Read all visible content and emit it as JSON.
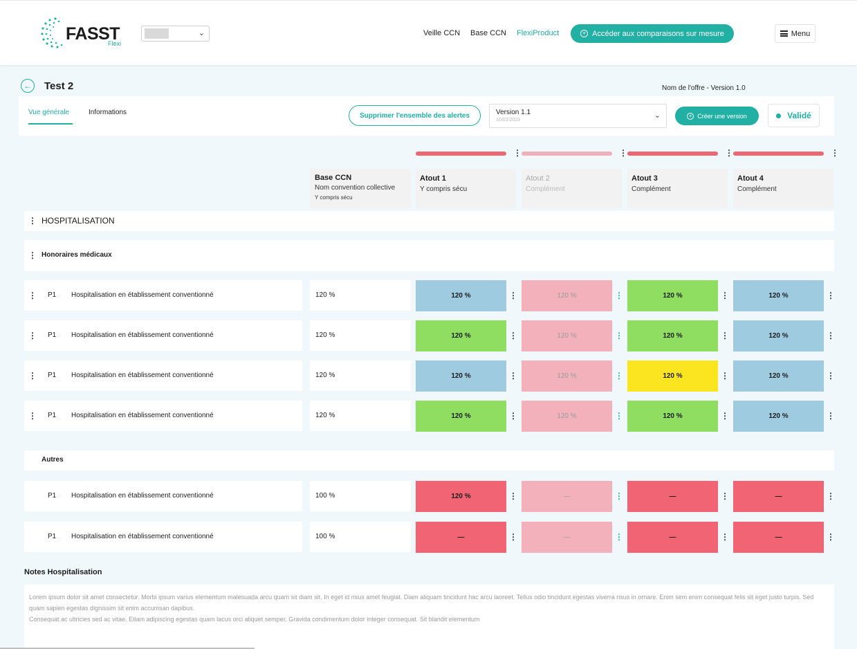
{
  "header": {
    "logo_text": "FASST",
    "logo_sub": "Flexi",
    "nav": [
      "Veille CCN",
      "Base CCN",
      "FlexiProduct"
    ],
    "cta_label": "Accéder aux comparaisons sur mesure",
    "menu_label": "Menu"
  },
  "page": {
    "title": "Test 2",
    "offer_name": "Nom de l'offre - Version 1.0",
    "tabs": [
      "Vue générale",
      "Informations"
    ],
    "delete_alerts_label": "Supprimer l'ensemble des alertes",
    "version_label": "Version 1.1",
    "version_date": "10/02/2023",
    "create_version_label": "Créer une version",
    "status_label": "Validé"
  },
  "columns": {
    "base": {
      "title": "Base CCN",
      "subtitle": "Nom convention collective",
      "note": "Y compris sécu"
    },
    "atouts": [
      {
        "title": "Atout 1",
        "subtitle": "Y compris sécu",
        "bar_color": "#e96873"
      },
      {
        "title": "Atout 2",
        "subtitle": "Complément",
        "bar_color": "#f0b0bb"
      },
      {
        "title": "Atout 3",
        "subtitle": "Complément",
        "bar_color": "#e96873"
      },
      {
        "title": "Atout 4",
        "subtitle": "Complément",
        "bar_color": "#e96873"
      }
    ]
  },
  "sections": {
    "main": "HOSPITALISATION",
    "group1": "Honoraires médicaux",
    "group2": "Autres"
  },
  "rows_group1": [
    {
      "code": "P1",
      "label": "Hospitalisation en établissement conventionné",
      "base": "120 %",
      "cells": [
        "120 %",
        "120 %",
        "120 %",
        "120 %"
      ],
      "colors": [
        "#9fcbe1",
        "#f2b1bb",
        "#8fde62",
        "#9fcbe1"
      ]
    },
    {
      "code": "P1",
      "label": "Hospitalisation en établissement conventionné",
      "base": "120 %",
      "cells": [
        "120 %",
        "120 %",
        "120 %",
        "120 %"
      ],
      "colors": [
        "#8fde62",
        "#f2b1bb",
        "#8fde62",
        "#9fcbe1"
      ]
    },
    {
      "code": "P1",
      "label": "Hospitalisation en établissement conventionné",
      "base": "120 %",
      "cells": [
        "120 %",
        "120 %",
        "120 %",
        "120 %"
      ],
      "colors": [
        "#9fcbe1",
        "#f2b1bb",
        "#fbe520",
        "#9fcbe1"
      ]
    },
    {
      "code": "P1",
      "label": "Hospitalisation en établissement conventionné",
      "base": "120 %",
      "cells": [
        "120 %",
        "120 %",
        "120 %",
        "120 %"
      ],
      "colors": [
        "#8fde62",
        "#f2b1bb",
        "#8fde62",
        "#9fcbe1"
      ]
    }
  ],
  "rows_group2": [
    {
      "code": "P1",
      "label": "Hospitalisation en établissement conventionné",
      "base": "100 %",
      "cells": [
        "120 %",
        "—",
        "—",
        "—"
      ],
      "colors": [
        "#f06473",
        "#f2b1bb",
        "#f06473",
        "#f06473"
      ]
    },
    {
      "code": "P1",
      "label": "Hospitalisation en établissement conventionné",
      "base": "100 %",
      "cells": [
        "—",
        "—",
        "—",
        "—"
      ],
      "colors": [
        "#f06473",
        "#f2b1bb",
        "#f06473",
        "#f06473"
      ]
    }
  ],
  "notes": {
    "title": "Notes Hospitalisation",
    "line1": "Lorem ipsum dolor sit amet consectetur. Morbi ipsum varius elementum malesuada arcu quam sit diam sit. In eget id risus amet feugiat. Diam aliquam tincidunt hac arcu laoreet. Tellus odio tincidunt egestas viverra risus in ornare. Enim sem enim consequat felis sit eget justo turpis. Sed quam sapien egestas dignissim sit enim accumsan dapibus.",
    "line2": "Consequat ac ultricies sed ac vitae. Etiam adipiscing egestas quam lacus orci aliquet semper. Gravida condimentum dolor integer consequat. Sit blandit elementum"
  },
  "colors": {
    "accent": "#1fb1a3",
    "alert": "#f06473",
    "ok": "#8fde62",
    "info": "#9fcbe1",
    "warn": "#fbe520"
  }
}
